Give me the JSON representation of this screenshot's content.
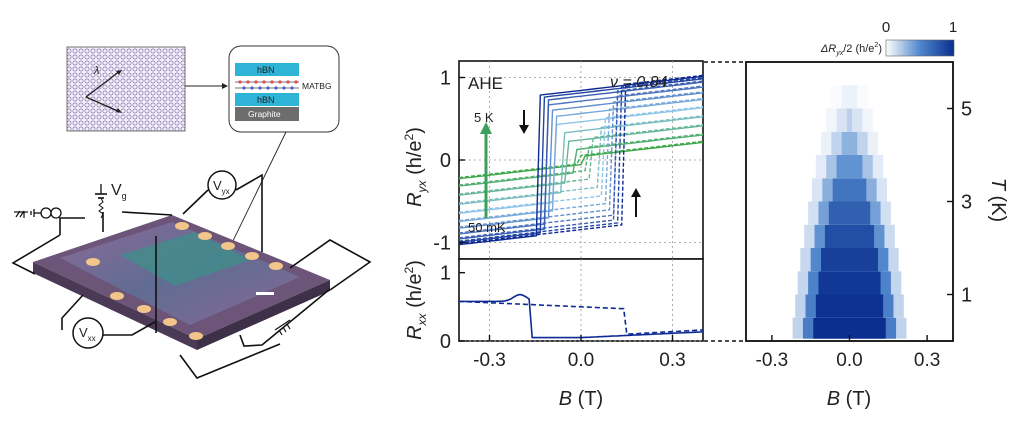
{
  "schematic": {
    "layer_top_hbn": "hBN",
    "layer_matbg": "MATBG",
    "layer_bottom_hbn": "hBN",
    "layer_graphite": "Graphite",
    "moire_label": "λ",
    "gate_voltage_label": "V",
    "gate_voltage_sub": "g",
    "vyx_label": "V",
    "vyx_sub": "yx",
    "vxx_label": "V",
    "vxx_sub": "xx"
  },
  "panel_ryx": {
    "ylabel_main": "R",
    "ylabel_sub": "yx",
    "ylabel_unit": " (h/e",
    "ylabel_unit_sup": "2",
    "ylabel_close": ")",
    "tag": "AHE",
    "filling": "ν = 0.84",
    "temp_high": "5 K",
    "temp_low": "50 mK",
    "yticks": [
      "1",
      "0",
      "-1"
    ]
  },
  "panel_rxx": {
    "ylabel_main": "R",
    "ylabel_sub": "xx",
    "ylabel_unit": " (h/e",
    "ylabel_unit_sup": "2",
    "ylabel_close": ")",
    "yticks": [
      "1",
      "0"
    ]
  },
  "x_axis": {
    "ticks": [
      "-0.3",
      "0.0",
      "0.3"
    ],
    "label_main": "B",
    "label_unit": " (T)"
  },
  "colormap_panel": {
    "colorbar_title_main": "ΔR",
    "colorbar_title_sub": "yx",
    "colorbar_title_tail": "/2 (h/e",
    "colorbar_title_sup": "2",
    "colorbar_title_close": ")",
    "colorbar_min": "0",
    "colorbar_max": "1",
    "yticks": [
      "5",
      "3",
      "1"
    ],
    "ylabel_main": "T",
    "ylabel_unit": " (K)",
    "xticks": [
      "-0.3",
      "0.0",
      "0.3"
    ],
    "xlabel_main": "B",
    "xlabel_unit": " (T)"
  },
  "chart_data": [
    {
      "type": "line",
      "panel": "Ryx",
      "xlim": [
        -0.4,
        0.4
      ],
      "ylim": [
        -1.2,
        1.2
      ],
      "coercive_field_T": [
        0.14,
        0.13,
        0.12,
        0.11,
        0.1,
        0.09,
        0.08,
        0.06,
        0.04,
        0.02,
        0.0
      ],
      "saturation_Ryx": [
        0.85,
        0.82,
        0.78,
        0.72,
        0.65,
        0.57,
        0.47,
        0.36,
        0.25,
        0.14,
        0.05
      ],
      "temperature_range": [
        "50 mK",
        "5 K"
      ]
    },
    {
      "type": "line",
      "panel": "Rxx",
      "xlim": [
        -0.4,
        0.4
      ],
      "ylim": [
        0,
        1.2
      ]
    },
    {
      "type": "heatmap",
      "panel": "dRyx_vs_T",
      "xlim": [
        -0.4,
        0.4
      ],
      "ylim_K": [
        0,
        6
      ],
      "colorbar_range": [
        0,
        1
      ],
      "temperatures_K": [
        0.05,
        0.5,
        1.0,
        1.5,
        2.0,
        2.5,
        3.0,
        3.5,
        4.0,
        4.5,
        5.0
      ],
      "half_width_T": [
        0.16,
        0.15,
        0.14,
        0.13,
        0.115,
        0.1,
        0.085,
        0.07,
        0.05,
        0.03,
        0.01
      ],
      "peak_value": [
        1.0,
        0.98,
        0.95,
        0.9,
        0.82,
        0.72,
        0.6,
        0.45,
        0.32,
        0.2,
        0.1
      ]
    }
  ]
}
